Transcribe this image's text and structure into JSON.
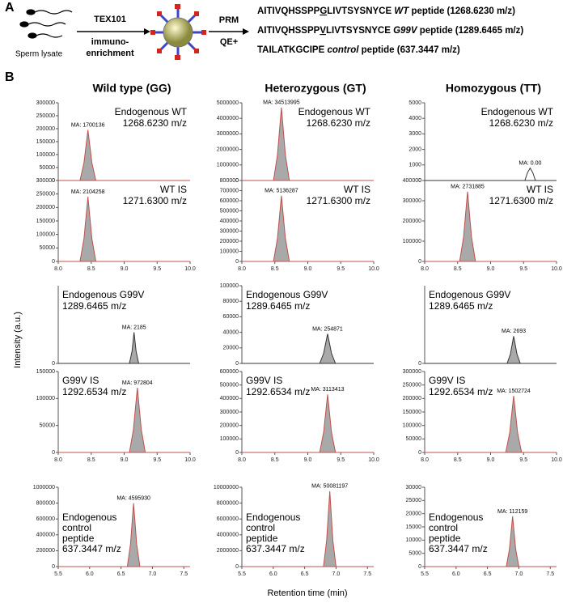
{
  "figure": {
    "panel_a": "A",
    "panel_b": "B",
    "y_label": "Intensity (a.u.)",
    "x_label": "Retention time (min)",
    "columns": [
      "Wild type (GG)",
      "Heterozygous (GT)",
      "Homozygous (TT)"
    ]
  },
  "panel_a": {
    "lysate": "Sperm lysate",
    "enrich": [
      "TEX101",
      "immuno-",
      "enrichment"
    ],
    "ms": [
      "PRM",
      "QE+"
    ],
    "peptides": [
      {
        "pre": "AITIVQHSSPP",
        "mut": "G",
        "post": "LIVTSYSNYCE",
        "name": "WT",
        "suffix": "peptide (1268.6230 m/z)"
      },
      {
        "pre": "AITIVQHSSPP",
        "mut": "V",
        "post": "LIVTSYSNYCE",
        "name": "G99V",
        "suffix": "peptide (1289.6465 m/z)"
      },
      {
        "pre": "TAILATKGCIPE",
        "mut": "",
        "post": "",
        "name": "control",
        "suffix": "peptide (637.3447 m/z)"
      }
    ]
  },
  "chart_data": [
    {
      "type": "area",
      "labels": [
        "Endogenous WT",
        "1268.6230 m/z"
      ],
      "annotation": "MA: 1700136",
      "x": [
        8,
        8.33,
        8.39,
        8.45,
        8.51,
        8.57,
        10
      ],
      "values": [
        0,
        0,
        68000,
        195000,
        68000,
        0,
        0
      ],
      "xlim": [
        8,
        10
      ],
      "ylim": [
        0,
        300000
      ],
      "yticks": [
        0,
        50000,
        100000,
        150000,
        200000,
        250000,
        300000
      ],
      "color": "#a9a9a9",
      "line_color": "#c0504d"
    },
    {
      "type": "area",
      "labels": [
        "Endogenous WT",
        "1268.6230 m/z"
      ],
      "annotation": "MA: 34513995",
      "x": [
        8,
        8.48,
        8.54,
        8.6,
        8.66,
        8.72,
        10
      ],
      "values": [
        0,
        0,
        1650000,
        4700000,
        1650000,
        0,
        0
      ],
      "xlim": [
        8,
        10
      ],
      "ylim": [
        0,
        5000000
      ],
      "yticks": [
        0,
        1000000,
        2000000,
        3000000,
        4000000,
        5000000
      ],
      "color": "#a9a9a9",
      "line_color": "#c0504d"
    },
    {
      "type": "area",
      "labels": [
        "Endogenous WT",
        "1268.6230 m/z"
      ],
      "annotation": "MA: 0.00",
      "x": [
        8,
        9.52,
        9.56,
        9.6,
        9.64,
        9.68,
        10
      ],
      "values": [
        0,
        0,
        500,
        800,
        500,
        0,
        0
      ],
      "xlim": [
        8,
        10
      ],
      "ylim": [
        0,
        5000
      ],
      "yticks": [
        0,
        1000,
        2000,
        3000,
        4000,
        5000
      ],
      "color": "#ffffff",
      "line_color": "#333333"
    },
    {
      "type": "area",
      "labels": [
        "WT IS",
        "1271.6300 m/z"
      ],
      "annotation": "MA: 2104258",
      "x": [
        8,
        8.33,
        8.39,
        8.45,
        8.51,
        8.57,
        10
      ],
      "values": [
        0,
        0,
        84000,
        240000,
        84000,
        0,
        0
      ],
      "xlim": [
        8,
        10
      ],
      "ylim": [
        0,
        300000
      ],
      "yticks": [
        0,
        50000,
        100000,
        150000,
        200000,
        250000,
        300000
      ],
      "xticks": [
        {
          "value": 8,
          "label": "8.0"
        },
        8.5,
        {
          "value": 9,
          "label": "9.0"
        },
        9.5,
        {
          "value": 10,
          "label": "10.0"
        }
      ],
      "color": "#a9a9a9",
      "line_color": "#c0504d"
    },
    {
      "type": "area",
      "labels": [
        "WT IS",
        "1271.6300 m/z"
      ],
      "annotation": "MA: 5136287",
      "x": [
        8,
        8.48,
        8.54,
        8.6,
        8.66,
        8.72,
        10
      ],
      "values": [
        0,
        0,
        228000,
        650000,
        228000,
        0,
        0
      ],
      "xlim": [
        8,
        10
      ],
      "ylim": [
        0,
        800000
      ],
      "yticks": [
        0,
        100000,
        200000,
        300000,
        400000,
        500000,
        600000,
        700000,
        800000
      ],
      "xticks": [
        {
          "value": 8,
          "label": "8.0"
        },
        8.5,
        {
          "value": 9,
          "label": "9.0"
        },
        9.5,
        {
          "value": 10,
          "label": "10.0"
        }
      ],
      "color": "#a9a9a9",
      "line_color": "#c0504d"
    },
    {
      "type": "area",
      "labels": [
        "WT IS",
        "1271.6300 m/z"
      ],
      "annotation": "MA: 2731885",
      "x": [
        8,
        8.53,
        8.59,
        8.65,
        8.71,
        8.77,
        10
      ],
      "values": [
        0,
        0,
        121000,
        345000,
        121000,
        0,
        0
      ],
      "xlim": [
        8,
        10
      ],
      "ylim": [
        0,
        400000
      ],
      "yticks": [
        0,
        100000,
        200000,
        300000,
        400000
      ],
      "xticks": [
        {
          "value": 8,
          "label": "8.0"
        },
        8.5,
        {
          "value": 9,
          "label": "9.0"
        },
        9.5,
        {
          "value": 10,
          "label": "10.0"
        }
      ],
      "color": "#a9a9a9",
      "line_color": "#c0504d"
    },
    {
      "type": "area",
      "labels": [
        "Endogenous G99V",
        "1289.6465 m/z"
      ],
      "annotation": "MA: 2185",
      "x": [
        8,
        9.08,
        9.12,
        9.15,
        9.18,
        9.22,
        10
      ],
      "values": [
        0,
        0,
        80,
        200,
        80,
        0,
        0
      ],
      "xlim": [
        8,
        10
      ],
      "ylim": [
        0,
        500
      ],
      "yticks": [
        0
      ],
      "color": "#a9a9a9",
      "line_color": "#333333"
    },
    {
      "type": "area",
      "labels": [
        "Endogenous G99V",
        "1289.6465 m/z"
      ],
      "annotation": "MA: 254871",
      "x": [
        8,
        9.18,
        9.24,
        9.3,
        9.36,
        9.42,
        10
      ],
      "values": [
        0,
        0,
        13000,
        38000,
        13000,
        0,
        0
      ],
      "xlim": [
        8,
        10
      ],
      "ylim": [
        0,
        100000
      ],
      "yticks": [
        0,
        20000,
        40000,
        60000,
        80000,
        100000
      ],
      "color": "#a9a9a9",
      "line_color": "#333333"
    },
    {
      "type": "area",
      "labels": [
        "Endogenous G99V",
        "1289.6465 m/z"
      ],
      "annotation": "MA: 2693",
      "x": [
        8,
        9.25,
        9.3,
        9.35,
        9.4,
        9.45,
        10
      ],
      "values": [
        0,
        0,
        120,
        350,
        120,
        0,
        0
      ],
      "xlim": [
        8,
        10
      ],
      "ylim": [
        0,
        1000
      ],
      "yticks": [
        0
      ],
      "color": "#a9a9a9",
      "line_color": "#333333"
    },
    {
      "type": "area",
      "labels": [
        "G99V IS",
        "1292.6534 m/z"
      ],
      "annotation": "MA: 972804",
      "x": [
        8,
        9.08,
        9.14,
        9.2,
        9.26,
        9.32,
        10
      ],
      "values": [
        0,
        0,
        42000,
        120000,
        42000,
        0,
        0
      ],
      "xlim": [
        8,
        10
      ],
      "ylim": [
        0,
        150000
      ],
      "yticks": [
        0,
        50000,
        100000,
        150000
      ],
      "xticks": [
        {
          "value": 8,
          "label": "8.0"
        },
        8.5,
        {
          "value": 9,
          "label": "9.0"
        },
        9.5,
        {
          "value": 10,
          "label": "10.0"
        }
      ],
      "color": "#a9a9a9",
      "line_color": "#c0504d"
    },
    {
      "type": "area",
      "labels": [
        "G99V IS",
        "1292.6534 m/z"
      ],
      "annotation": "MA: 3113413",
      "x": [
        8,
        9.18,
        9.24,
        9.3,
        9.36,
        9.42,
        10
      ],
      "values": [
        0,
        0,
        150000,
        430000,
        150000,
        0,
        0
      ],
      "xlim": [
        8,
        10
      ],
      "ylim": [
        0,
        600000
      ],
      "yticks": [
        0,
        100000,
        200000,
        300000,
        400000,
        500000,
        600000
      ],
      "xticks": [
        {
          "value": 8,
          "label": "8.0"
        },
        8.5,
        {
          "value": 9,
          "label": "9.0"
        },
        9.5,
        {
          "value": 10,
          "label": "10.0"
        }
      ],
      "color": "#a9a9a9",
      "line_color": "#c0504d"
    },
    {
      "type": "area",
      "labels": [
        "G99V IS",
        "1292.6534 m/z"
      ],
      "annotation": "MA: 1502724",
      "x": [
        8,
        9.23,
        9.29,
        9.35,
        9.41,
        9.47,
        10
      ],
      "values": [
        0,
        0,
        73000,
        210000,
        73000,
        0,
        0
      ],
      "xlim": [
        8,
        10
      ],
      "ylim": [
        0,
        300000
      ],
      "yticks": [
        0,
        50000,
        100000,
        150000,
        200000,
        250000,
        300000
      ],
      "xticks": [
        {
          "value": 8,
          "label": "8.0"
        },
        8.5,
        {
          "value": 9,
          "label": "9.0"
        },
        9.5,
        {
          "value": 10,
          "label": "10.0"
        }
      ],
      "color": "#a9a9a9",
      "line_color": "#c0504d"
    },
    {
      "type": "area",
      "labels": [
        "Endogenous",
        "control",
        "peptide",
        "637.3447 m/z"
      ],
      "annotation": "MA: 4595930",
      "x": [
        5.5,
        6.6,
        6.65,
        6.7,
        6.75,
        6.8,
        7.6
      ],
      "values": [
        0,
        0,
        280000,
        800000,
        280000,
        0,
        0
      ],
      "xlim": [
        5.5,
        7.6
      ],
      "ylim": [
        0,
        1000000
      ],
      "yticks": [
        0,
        200000,
        400000,
        600000,
        800000,
        1000000
      ],
      "xticks": [
        5.5,
        {
          "value": 6,
          "label": "6.0"
        },
        6.5,
        {
          "value": 7,
          "label": "7.0"
        },
        7.5
      ],
      "color": "#a9a9a9",
      "line_color": "#c0504d"
    },
    {
      "type": "area",
      "labels": [
        "Endogenous",
        "control",
        "peptide",
        "637.3447 m/z"
      ],
      "annotation": "MA: 50081197",
      "x": [
        5.5,
        6.8,
        6.85,
        6.9,
        6.95,
        7.0,
        7.6
      ],
      "values": [
        0,
        0,
        3300000,
        9500000,
        3300000,
        0,
        0
      ],
      "xlim": [
        5.5,
        7.6
      ],
      "ylim": [
        0,
        10000000
      ],
      "yticks": [
        0,
        2000000,
        4000000,
        6000000,
        8000000,
        10000000
      ],
      "xticks": [
        5.5,
        {
          "value": 6,
          "label": "6.0"
        },
        6.5,
        {
          "value": 7,
          "label": "7.0"
        },
        7.5
      ],
      "color": "#a9a9a9",
      "line_color": "#c0504d"
    },
    {
      "type": "area",
      "labels": [
        "Endogenous",
        "control",
        "peptide",
        "637.3447 m/z"
      ],
      "annotation": "MA: 112159",
      "x": [
        5.5,
        6.8,
        6.85,
        6.9,
        6.95,
        7.0,
        7.6
      ],
      "values": [
        0,
        0,
        6600,
        19000,
        6600,
        0,
        0
      ],
      "xlim": [
        5.5,
        7.6
      ],
      "ylim": [
        0,
        30000
      ],
      "yticks": [
        0,
        5000,
        10000,
        15000,
        20000,
        25000,
        30000
      ],
      "xticks": [
        5.5,
        {
          "value": 6,
          "label": "6.0"
        },
        6.5,
        {
          "value": 7,
          "label": "7.0"
        },
        7.5
      ],
      "color": "#a9a9a9",
      "line_color": "#c0504d"
    }
  ]
}
